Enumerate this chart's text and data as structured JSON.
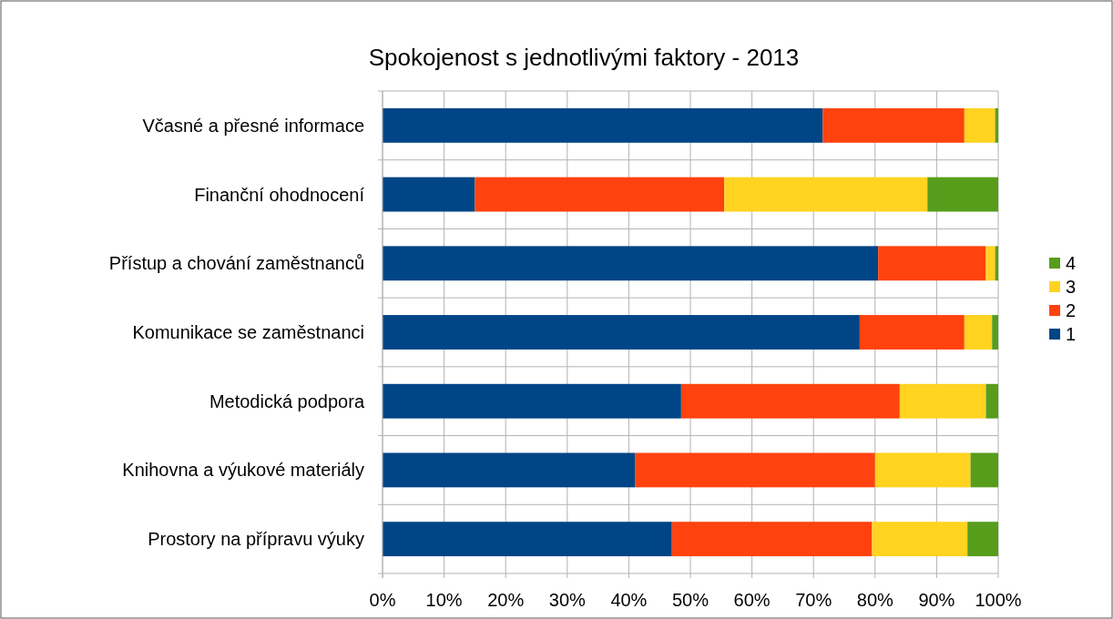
{
  "chart_data": {
    "type": "bar",
    "orientation": "horizontal",
    "stacked": true,
    "title": "Spokojenost s jednotlivými faktory - 2013",
    "categories": [
      "Včasné a přesné informace",
      "Finanční ohodnocení",
      "Přístup a chování zaměstnanců",
      "Komunikace se zaměstnanci",
      "Metodická podpora",
      "Knihovna a výukové materiály",
      "Prostory na přípravu výuky"
    ],
    "series": [
      {
        "name": "1",
        "color": "#004586",
        "values": [
          71.5,
          15,
          80.5,
          77.5,
          48.5,
          41,
          47
        ]
      },
      {
        "name": "2",
        "color": "#ff420e",
        "values": [
          23,
          40.5,
          17.5,
          17,
          35.5,
          39,
          32.5
        ]
      },
      {
        "name": "3",
        "color": "#ffd320",
        "values": [
          5,
          33,
          1.5,
          4.5,
          14,
          15.5,
          15.5
        ]
      },
      {
        "name": "4",
        "color": "#579d1c",
        "values": [
          0.5,
          11.5,
          0.5,
          1,
          2,
          4.5,
          5
        ]
      }
    ],
    "xlim": [
      0,
      100
    ],
    "xticks": [
      {
        "value": 0,
        "label": "0%"
      },
      {
        "value": 10,
        "label": "10%"
      },
      {
        "value": 20,
        "label": "20%"
      },
      {
        "value": 30,
        "label": "30%"
      },
      {
        "value": 40,
        "label": "40%"
      },
      {
        "value": 50,
        "label": "50%"
      },
      {
        "value": 60,
        "label": "60%"
      },
      {
        "value": 70,
        "label": "70%"
      },
      {
        "value": 80,
        "label": "80%"
      },
      {
        "value": 90,
        "label": "90%"
      },
      {
        "value": 100,
        "label": "100%"
      }
    ],
    "grid": true,
    "legend": "right"
  }
}
